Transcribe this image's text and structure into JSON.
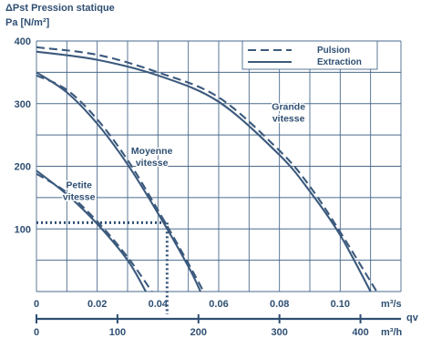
{
  "chart_data": {
    "type": "line",
    "title": "ΔPst  Pression statique",
    "ylabel": "Pa [N/m²]",
    "xlabel": "qv",
    "x_unit": "m³/s",
    "x2_unit": "m³/h",
    "xlim": [
      0,
      0.12
    ],
    "ylim": [
      0,
      400
    ],
    "x_ticks": [
      0,
      0.02,
      0.04,
      0.06,
      0.08,
      0.1
    ],
    "x_tick_labels": [
      "0",
      "0.02",
      "0.04",
      "0.06",
      "0.08",
      "0.10"
    ],
    "y_ticks": [
      100,
      200,
      300,
      400
    ],
    "y_tick_labels": [
      "100",
      "200",
      "300",
      "400"
    ],
    "x2_ticks": [
      0,
      100,
      200,
      300,
      400
    ],
    "x2_tick_labels": [
      "0",
      "100",
      "200",
      "300",
      "400"
    ],
    "grid": true,
    "legend_position": "top-right",
    "legend": [
      {
        "label": "Pulsion",
        "style": "dashed"
      },
      {
        "label": "Extraction",
        "style": "solid"
      }
    ],
    "regions": [
      {
        "lines": [
          "Grande",
          "vitesse"
        ],
        "x": 0.083,
        "y": 290
      },
      {
        "lines": [
          "Moyenne",
          "vitesse"
        ],
        "x": 0.038,
        "y": 220
      },
      {
        "lines": [
          "Petite",
          "vitesse"
        ],
        "x": 0.014,
        "y": 165
      }
    ],
    "series": [
      {
        "speed": "Grande",
        "style": "solid",
        "points": [
          [
            0,
            383
          ],
          [
            0.02,
            370
          ],
          [
            0.04,
            345
          ],
          [
            0.06,
            303
          ],
          [
            0.08,
            218
          ],
          [
            0.09,
            160
          ],
          [
            0.1,
            90
          ],
          [
            0.11,
            0
          ]
        ]
      },
      {
        "speed": "Grande",
        "style": "dashed",
        "points": [
          [
            0,
            390
          ],
          [
            0.02,
            378
          ],
          [
            0.04,
            350
          ],
          [
            0.06,
            310
          ],
          [
            0.08,
            225
          ],
          [
            0.09,
            168
          ],
          [
            0.1,
            95
          ],
          [
            0.112,
            0
          ]
        ]
      },
      {
        "speed": "Moyenne",
        "style": "solid",
        "points": [
          [
            0,
            350
          ],
          [
            0.01,
            318
          ],
          [
            0.02,
            268
          ],
          [
            0.03,
            203
          ],
          [
            0.04,
            125
          ],
          [
            0.05,
            40
          ],
          [
            0.054,
            0
          ]
        ]
      },
      {
        "speed": "Moyenne",
        "style": "dashed",
        "points": [
          [
            0,
            345
          ],
          [
            0.01,
            322
          ],
          [
            0.02,
            275
          ],
          [
            0.03,
            210
          ],
          [
            0.04,
            130
          ],
          [
            0.05,
            45
          ],
          [
            0.055,
            0
          ]
        ]
      },
      {
        "speed": "Petite",
        "style": "solid",
        "points": [
          [
            0,
            193
          ],
          [
            0.01,
            155
          ],
          [
            0.02,
            108
          ],
          [
            0.03,
            50
          ],
          [
            0.036,
            0
          ]
        ]
      },
      {
        "speed": "Petite",
        "style": "dashed",
        "points": [
          [
            0,
            188
          ],
          [
            0.01,
            158
          ],
          [
            0.02,
            112
          ],
          [
            0.03,
            55
          ],
          [
            0.038,
            0
          ]
        ]
      }
    ],
    "operating_point": {
      "x": 0.043,
      "y": 110
    }
  }
}
